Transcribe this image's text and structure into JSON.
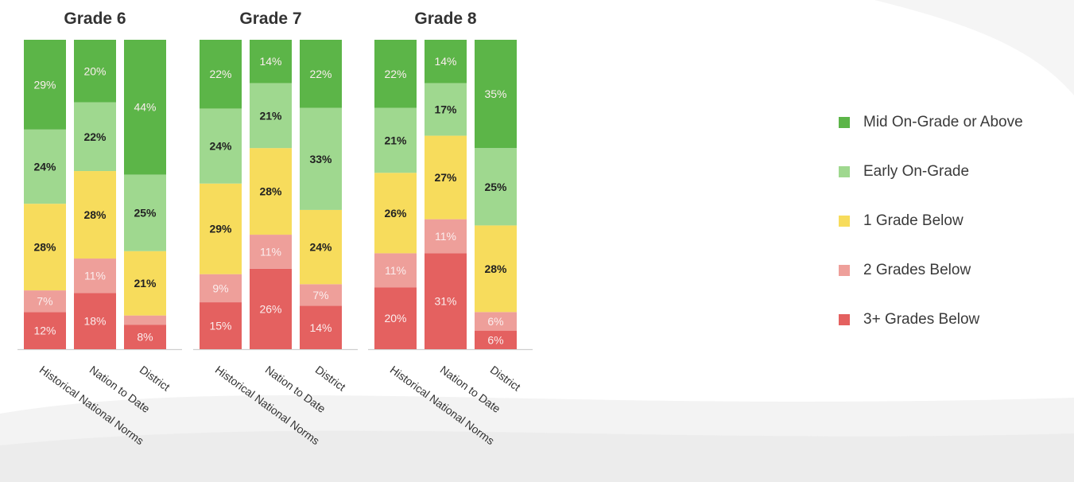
{
  "chart_data": {
    "type": "bar",
    "stacked": true,
    "normalized": true,
    "groups": [
      "Grade 6",
      "Grade 7",
      "Grade 8"
    ],
    "categories": [
      "Historical National Norms",
      "Nation to Date",
      "District"
    ],
    "series": [
      {
        "name": "3+ Grades Below",
        "color": "#e46160",
        "values": [
          [
            12,
            18,
            8
          ],
          [
            15,
            26,
            14
          ],
          [
            20,
            31,
            6
          ]
        ]
      },
      {
        "name": "2 Grades Below",
        "color": "#ee9f9a",
        "values": [
          [
            7,
            11,
            3
          ],
          [
            9,
            11,
            7
          ],
          [
            11,
            11,
            6
          ]
        ]
      },
      {
        "name": "1 Grade Below",
        "color": "#f7dc5c",
        "values": [
          [
            28,
            28,
            21
          ],
          [
            29,
            28,
            24
          ],
          [
            26,
            27,
            28
          ]
        ]
      },
      {
        "name": "Early On-Grade",
        "color": "#9fd88f",
        "values": [
          [
            24,
            22,
            25
          ],
          [
            24,
            21,
            33
          ],
          [
            21,
            17,
            25
          ]
        ]
      },
      {
        "name": "Mid On-Grade or Above",
        "color": "#5cb548",
        "values": [
          [
            29,
            20,
            44
          ],
          [
            22,
            14,
            22
          ],
          [
            22,
            14,
            35
          ]
        ]
      }
    ],
    "labels": [
      [
        [
          "12%",
          "18%",
          "8%"
        ],
        [
          "15%",
          "26%",
          "14%"
        ],
        [
          "20%",
          "31%",
          "6%"
        ]
      ],
      [
        [
          "7%",
          "11%",
          ""
        ],
        [
          "9%",
          "11%",
          "7%"
        ],
        [
          "11%",
          "11%",
          "6%"
        ]
      ],
      [
        [
          "28%",
          "28%",
          "21%"
        ],
        [
          "29%",
          "28%",
          "24%"
        ],
        [
          "26%",
          "27%",
          "28%"
        ]
      ],
      [
        [
          "24%",
          "22%",
          "25%"
        ],
        [
          "24%",
          "21%",
          "33%"
        ],
        [
          "21%",
          "17%",
          "25%"
        ]
      ],
      [
        [
          "29%",
          "20%",
          "44%"
        ],
        [
          "22%",
          "14%",
          "22%"
        ],
        [
          "22%",
          "14%",
          "35%"
        ]
      ]
    ],
    "label_colors": [
      "light",
      "light",
      "dark",
      "dark",
      "light"
    ],
    "legend": {
      "position": "right",
      "order": [
        "Mid On-Grade or Above",
        "Early On-Grade",
        "1 Grade Below",
        "2 Grades Below",
        "3+ Grades Below"
      ]
    },
    "ylim": [
      0,
      100
    ],
    "grid": false
  }
}
